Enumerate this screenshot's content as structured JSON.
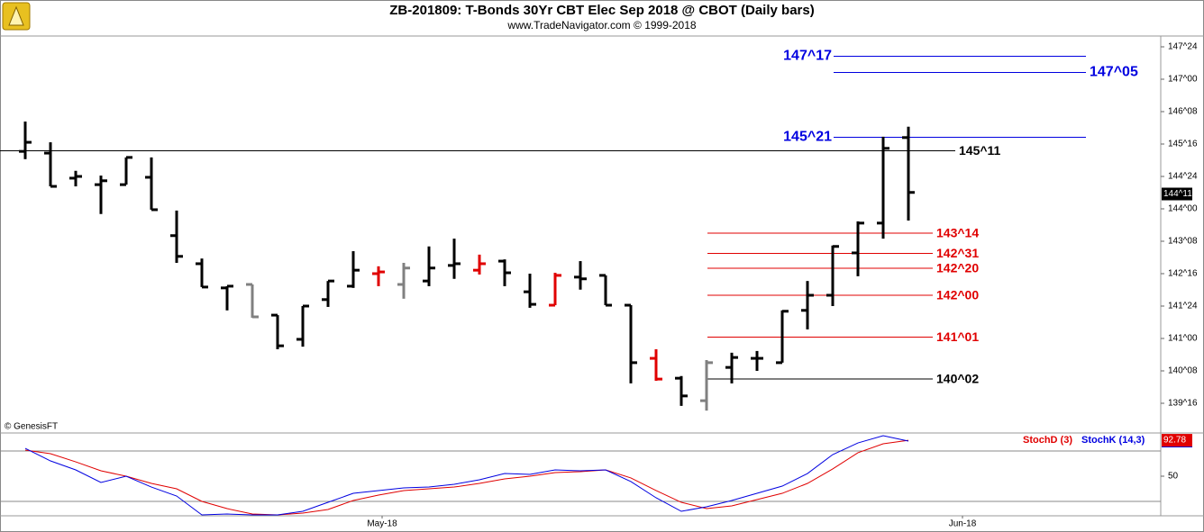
{
  "chart_data": [
    {
      "type": "ohlc",
      "title": "ZB-201809:  T-Bonds 30Yr CBT Elec Sep 2018 @ CBOT  (Daily bars)",
      "subtitle": "www.TradeNavigator.com © 1999-2018",
      "source": "© GenesisFT",
      "categories": [
        null,
        null,
        null,
        null,
        null,
        null,
        null,
        null,
        null,
        null,
        null,
        null,
        null,
        null,
        "May-18",
        null,
        null,
        null,
        null,
        null,
        null,
        null,
        null,
        null,
        null,
        null,
        null,
        null,
        null,
        null,
        null,
        null,
        null,
        null,
        null,
        null,
        null,
        "Jun-18"
      ],
      "open": [
        145.33,
        145.29,
        144.71,
        144.56,
        144.56,
        144.73,
        143.38,
        142.73,
        142.17,
        142.25,
        141.54,
        140.98,
        141.9,
        142.21,
        142.5,
        142.25,
        142.33,
        142.69,
        142.58,
        142.79,
        142.08,
        141.77,
        142.42,
        142.46,
        141.77,
        140.54,
        140.08,
        139.56,
        140.33,
        140.54,
        140.44,
        141.65,
        142.0,
        142.98,
        143.67,
        145.65,
        null,
        null
      ],
      "high": [
        146.02,
        145.54,
        144.88,
        144.77,
        145.19,
        145.19,
        143.96,
        142.85,
        142.21,
        142.25,
        141.54,
        141.75,
        142.33,
        143.02,
        142.67,
        142.75,
        143.13,
        143.31,
        142.94,
        142.83,
        142.5,
        142.52,
        142.79,
        142.46,
        141.77,
        140.75,
        140.13,
        140.5,
        140.67,
        140.71,
        141.65,
        142.33,
        143.15,
        143.71,
        145.67,
        145.9,
        null,
        null
      ],
      "low": [
        145.15,
        144.52,
        144.52,
        143.88,
        144.56,
        143.98,
        142.75,
        142.19,
        141.65,
        141.48,
        140.75,
        140.81,
        141.73,
        142.17,
        142.21,
        141.92,
        142.21,
        142.38,
        142.48,
        142.21,
        141.71,
        141.77,
        142.13,
        141.77,
        139.96,
        140.02,
        139.44,
        139.33,
        139.96,
        140.25,
        140.44,
        141.21,
        141.75,
        142.44,
        143.31,
        143.73,
        null,
        null
      ],
      "close": [
        145.54,
        144.52,
        144.75,
        144.65,
        145.19,
        143.98,
        142.9,
        142.19,
        142.21,
        141.5,
        140.83,
        141.75,
        142.33,
        142.58,
        142.54,
        142.63,
        142.63,
        142.73,
        142.73,
        142.52,
        141.79,
        142.46,
        142.38,
        141.77,
        140.44,
        140.06,
        139.67,
        140.44,
        140.56,
        140.54,
        141.63,
        142.0,
        143.13,
        143.67,
        145.4,
        144.38,
        null,
        null
      ],
      "colors": [
        "#000000",
        "#000000",
        "#000000",
        "#000000",
        "#000000",
        "#000000",
        "#000000",
        "#000000",
        "#000000",
        "#808080",
        "#000000",
        "#000000",
        "#000000",
        "#000000",
        "#e00000",
        "#808080",
        "#000000",
        "#000000",
        "#e00000",
        "#000000",
        "#000000",
        "#e00000",
        "#000000",
        "#000000",
        "#000000",
        "#e00000",
        "#000000",
        "#808080",
        "#000000",
        "#000000",
        "#000000",
        "#000000",
        "#000000",
        "#000000",
        "#000000",
        "#000000",
        null,
        null
      ],
      "ylim": [
        139.0,
        148.0
      ],
      "yticks": [
        {
          "value": 139.5,
          "label": "139^16"
        },
        {
          "value": 140.25,
          "label": "140^08"
        },
        {
          "value": 141.0,
          "label": "141^00"
        },
        {
          "value": 141.75,
          "label": "141^24"
        },
        {
          "value": 142.5,
          "label": "142^16"
        },
        {
          "value": 143.25,
          "label": "143^08"
        },
        {
          "value": 144.0,
          "label": "144^00"
        },
        {
          "value": 144.75,
          "label": "144^24"
        },
        {
          "value": 145.5,
          "label": "145^16"
        },
        {
          "value": 146.25,
          "label": "146^08"
        },
        {
          "value": 147.0,
          "label": "147^00"
        },
        {
          "value": 147.75,
          "label": "147^24"
        }
      ],
      "last_price": {
        "value": 144.34375,
        "label": "144^11"
      },
      "levels": [
        {
          "value": 147.53125,
          "label": "147^17",
          "color": "#0000e0"
        },
        {
          "value": 147.15625,
          "label": "147^05",
          "color": "#0000e0"
        },
        {
          "value": 145.65625,
          "label": "145^21",
          "color": "#0000e0"
        },
        {
          "value": 145.34375,
          "label": "145^11",
          "color": "#000000"
        },
        {
          "value": 143.4375,
          "label": "143^14",
          "color": "#e00000"
        },
        {
          "value": 142.96875,
          "label": "142^31",
          "color": "#e00000"
        },
        {
          "value": 142.625,
          "label": "142^20",
          "color": "#e00000"
        },
        {
          "value": 142.0,
          "label": "142^00",
          "color": "#e00000"
        },
        {
          "value": 141.03125,
          "label": "141^01",
          "color": "#e00000"
        },
        {
          "value": 140.0625,
          "label": "140^02",
          "color": "#000000"
        }
      ]
    },
    {
      "type": "line",
      "series": [
        {
          "name": "StochD (3)",
          "color": "#e00000",
          "values": [
            81.1,
            76.8,
            67.1,
            56.4,
            50.0,
            41.4,
            35.0,
            20.0,
            11.4,
            5.0,
            3.9,
            6.1,
            10.4,
            21.1,
            27.5,
            32.9,
            35.0,
            37.1,
            41.4,
            46.8,
            50.0,
            54.3,
            55.4,
            57.5,
            47.9,
            32.9,
            18.9,
            11.4,
            14.6,
            22.1,
            29.6,
            41.4,
            58.6,
            77.9,
            88.6,
            92.78,
            null,
            null
          ]
        },
        {
          "name": "StochK (14,3)",
          "color": "#0000e0",
          "values": [
            83.2,
            68.2,
            57.5,
            42.5,
            50.0,
            37.1,
            26.4,
            3.9,
            5.0,
            3.9,
            3.9,
            8.2,
            18.9,
            29.6,
            32.9,
            36.1,
            37.1,
            40.4,
            45.7,
            53.2,
            52.1,
            57.5,
            56.4,
            57.5,
            43.6,
            24.3,
            8.2,
            13.6,
            21.1,
            29.6,
            38.2,
            53.2,
            75.7,
            89.6,
            98.2,
            91.8,
            null,
            null
          ]
        }
      ],
      "ylim": [
        0,
        100
      ],
      "yticks": [
        50
      ],
      "bands": [
        20,
        80
      ]
    }
  ]
}
